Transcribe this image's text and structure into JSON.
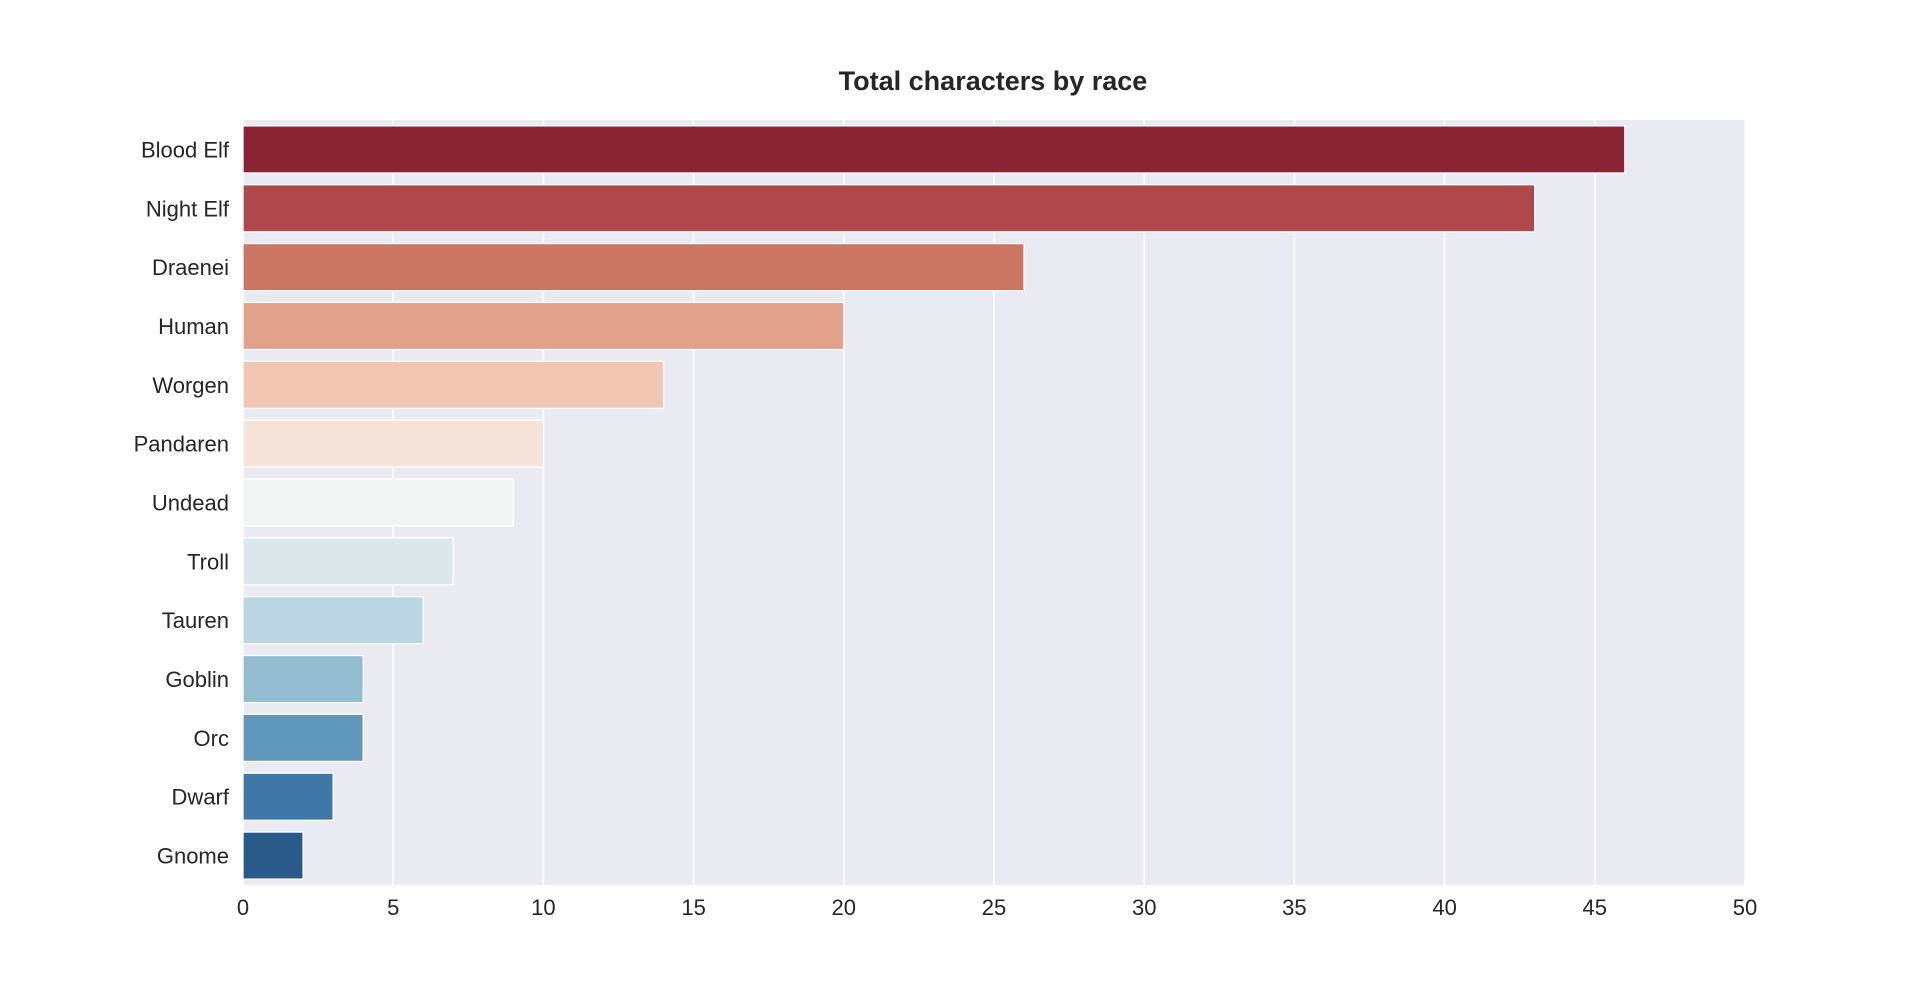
{
  "chart_data": {
    "type": "bar",
    "orientation": "horizontal",
    "title": "Total characters by race",
    "xlabel": "",
    "ylabel": "",
    "categories": [
      "Blood Elf",
      "Night Elf",
      "Draenei",
      "Human",
      "Worgen",
      "Pandaren",
      "Undead",
      "Troll",
      "Tauren",
      "Goblin",
      "Orc",
      "Dwarf",
      "Gnome"
    ],
    "values": [
      46,
      43,
      26,
      20,
      14,
      10,
      9,
      7,
      6,
      4,
      4,
      3,
      2
    ],
    "colors": [
      "#8a2334",
      "#af484b",
      "#cb7565",
      "#e2a18a",
      "#f1c6b3",
      "#f6e3da",
      "#f3f5f4",
      "#dce7ec",
      "#bbd6e2",
      "#93bcd0",
      "#5f98bb",
      "#3f77a6",
      "#295a8a"
    ],
    "xlim": [
      0,
      50
    ],
    "xticks": [
      0,
      5,
      10,
      15,
      20,
      25,
      30,
      35,
      40,
      45,
      50
    ],
    "grid": true,
    "background": "#eaeaf2",
    "legend": "none"
  }
}
